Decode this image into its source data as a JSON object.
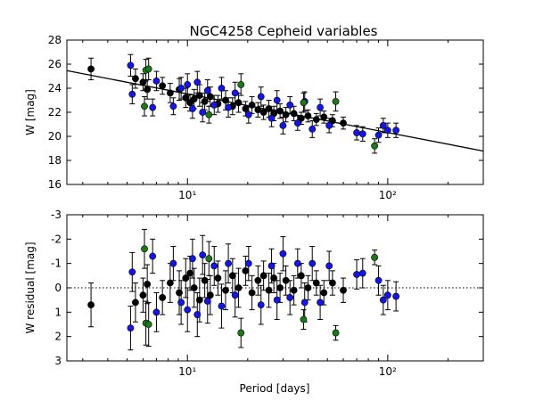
{
  "chart_data": [
    {
      "type": "scatter",
      "title": "NGC4258 Cepheid variables",
      "xlabel": "",
      "ylabel": "W [mag]",
      "xscale": "log",
      "xlim": [
        2.5,
        300
      ],
      "ylim": [
        28,
        16
      ],
      "yticks": [
        16,
        18,
        20,
        22,
        24,
        26,
        28
      ],
      "xticks": [
        {
          "value": 10,
          "label": "10¹"
        },
        {
          "value": 100,
          "label": "10²"
        }
      ],
      "grid": false,
      "fit_line": {
        "x": [
          2.5,
          300
        ],
        "y": [
          25.46,
          18.78
        ],
        "color": "#000000"
      },
      "series": [
        {
          "color": "#000000",
          "points": [
            {
              "x": 3.3,
              "y": 25.6,
              "err": 0.9
            },
            {
              "x": 5.5,
              "y": 24.8,
              "err": 0.8
            },
            {
              "x": 6.0,
              "y": 24.5,
              "err": 0.7
            },
            {
              "x": 6.3,
              "y": 23.9,
              "err": 0.8
            },
            {
              "x": 7.5,
              "y": 24.2,
              "err": 0.7
            },
            {
              "x": 8.2,
              "y": 23.6,
              "err": 0.8
            },
            {
              "x": 9.1,
              "y": 23.9,
              "err": 0.9
            },
            {
              "x": 9.8,
              "y": 23.2,
              "err": 0.8
            },
            {
              "x": 10.3,
              "y": 22.8,
              "err": 0.7
            },
            {
              "x": 10.8,
              "y": 23.1,
              "err": 0.8
            },
            {
              "x": 11.5,
              "y": 23.4,
              "err": 0.9
            },
            {
              "x": 12.2,
              "y": 22.9,
              "err": 0.7
            },
            {
              "x": 13.0,
              "y": 23.3,
              "err": 0.8
            },
            {
              "x": 14.2,
              "y": 22.7,
              "err": 0.7
            },
            {
              "x": 15.5,
              "y": 23.0,
              "err": 0.8
            },
            {
              "x": 16.8,
              "y": 22.5,
              "err": 0.7
            },
            {
              "x": 18.0,
              "y": 22.8,
              "err": 0.8
            },
            {
              "x": 19.5,
              "y": 22.3,
              "err": 0.6
            },
            {
              "x": 21.0,
              "y": 22.6,
              "err": 0.7
            },
            {
              "x": 22.5,
              "y": 22.2,
              "err": 0.6
            },
            {
              "x": 24.0,
              "y": 22.0,
              "err": 0.6
            },
            {
              "x": 25.5,
              "y": 22.3,
              "err": 0.7
            },
            {
              "x": 27.0,
              "y": 21.9,
              "err": 0.6
            },
            {
              "x": 29.0,
              "y": 22.1,
              "err": 0.6
            },
            {
              "x": 31.0,
              "y": 21.8,
              "err": 0.6
            },
            {
              "x": 34.0,
              "y": 21.9,
              "err": 0.6
            },
            {
              "x": 37.0,
              "y": 21.5,
              "err": 0.5
            },
            {
              "x": 40.0,
              "y": 21.7,
              "err": 0.5
            },
            {
              "x": 44.0,
              "y": 21.4,
              "err": 0.5
            },
            {
              "x": 48.0,
              "y": 21.6,
              "err": 0.5
            },
            {
              "x": 53.0,
              "y": 21.3,
              "err": 0.5
            },
            {
              "x": 60.0,
              "y": 21.1,
              "err": 0.5
            }
          ]
        },
        {
          "color": "#1515e6",
          "points": [
            {
              "x": 5.2,
              "y": 25.9,
              "err": 0.9
            },
            {
              "x": 5.3,
              "y": 23.5,
              "err": 0.8
            },
            {
              "x": 6.7,
              "y": 22.4,
              "err": 0.7
            },
            {
              "x": 7.0,
              "y": 24.6,
              "err": 0.8
            },
            {
              "x": 8.5,
              "y": 22.5,
              "err": 0.7
            },
            {
              "x": 9.3,
              "y": 24.0,
              "err": 0.9
            },
            {
              "x": 10.0,
              "y": 24.3,
              "err": 0.9
            },
            {
              "x": 10.6,
              "y": 22.3,
              "err": 0.8
            },
            {
              "x": 11.2,
              "y": 24.5,
              "err": 0.9
            },
            {
              "x": 11.9,
              "y": 22.0,
              "err": 0.8
            },
            {
              "x": 12.6,
              "y": 23.8,
              "err": 0.9
            },
            {
              "x": 13.6,
              "y": 22.6,
              "err": 0.8
            },
            {
              "x": 14.8,
              "y": 24.0,
              "err": 0.9
            },
            {
              "x": 16.0,
              "y": 22.4,
              "err": 0.8
            },
            {
              "x": 17.3,
              "y": 23.6,
              "err": 0.9
            },
            {
              "x": 20.2,
              "y": 21.8,
              "err": 0.7
            },
            {
              "x": 23.3,
              "y": 23.3,
              "err": 0.8
            },
            {
              "x": 26.3,
              "y": 21.5,
              "err": 0.7
            },
            {
              "x": 28.0,
              "y": 23.0,
              "err": 0.8
            },
            {
              "x": 30.0,
              "y": 20.9,
              "err": 0.7
            },
            {
              "x": 32.5,
              "y": 22.6,
              "err": 0.7
            },
            {
              "x": 35.5,
              "y": 21.1,
              "err": 0.6
            },
            {
              "x": 38.5,
              "y": 22.9,
              "err": 0.8
            },
            {
              "x": 42.0,
              "y": 20.6,
              "err": 0.7
            },
            {
              "x": 46.0,
              "y": 22.4,
              "err": 0.7
            },
            {
              "x": 51.0,
              "y": 20.9,
              "err": 0.6
            },
            {
              "x": 70.0,
              "y": 20.3,
              "err": 0.6
            },
            {
              "x": 75.0,
              "y": 20.2,
              "err": 0.6
            },
            {
              "x": 90.0,
              "y": 20.1,
              "err": 0.6
            },
            {
              "x": 95.0,
              "y": 20.9,
              "err": 0.6
            },
            {
              "x": 100.0,
              "y": 20.5,
              "err": 0.6
            },
            {
              "x": 110.0,
              "y": 20.5,
              "err": 0.6
            }
          ]
        },
        {
          "color": "#1a7a1a",
          "points": [
            {
              "x": 6.1,
              "y": 22.5,
              "err": 0.8
            },
            {
              "x": 6.2,
              "y": 25.5,
              "err": 0.9
            },
            {
              "x": 6.4,
              "y": 25.6,
              "err": 0.9
            },
            {
              "x": 12.8,
              "y": 21.8,
              "err": 0.7
            },
            {
              "x": 18.5,
              "y": 24.3,
              "err": 0.9
            },
            {
              "x": 38.0,
              "y": 22.8,
              "err": 0.8
            },
            {
              "x": 55.0,
              "y": 22.9,
              "err": 0.8
            },
            {
              "x": 86.0,
              "y": 19.2,
              "err": 0.6
            }
          ]
        }
      ]
    },
    {
      "type": "scatter",
      "title": "",
      "xlabel": "Period [days]",
      "ylabel": "W residual [mag]",
      "xscale": "log",
      "xlim": [
        2.5,
        300
      ],
      "ylim": [
        -3,
        3
      ],
      "yticks": [
        3,
        2,
        1,
        0,
        -1,
        -2,
        -3
      ],
      "xticks": [
        {
          "value": 10,
          "label": "10¹"
        },
        {
          "value": 100,
          "label": "10²"
        }
      ],
      "grid": false,
      "zero_line": {
        "y": 0,
        "style": "dotted"
      },
      "series": [
        {
          "color": "#000000",
          "points": [
            {
              "x": 3.3,
              "y": 0.7,
              "err": 0.9
            },
            {
              "x": 5.5,
              "y": 0.6,
              "err": 0.8
            },
            {
              "x": 6.0,
              "y": 0.3,
              "err": 0.7
            },
            {
              "x": 6.3,
              "y": -0.15,
              "err": 0.8
            },
            {
              "x": 7.5,
              "y": 0.4,
              "err": 0.7
            },
            {
              "x": 8.2,
              "y": -0.2,
              "err": 0.8
            },
            {
              "x": 9.1,
              "y": 0.2,
              "err": 0.9
            },
            {
              "x": 9.8,
              "y": -0.4,
              "err": 0.8
            },
            {
              "x": 10.3,
              "y": -0.6,
              "err": 0.7
            },
            {
              "x": 10.8,
              "y": 0.0,
              "err": 0.8
            },
            {
              "x": 11.5,
              "y": 0.5,
              "err": 0.9
            },
            {
              "x": 12.2,
              "y": -0.3,
              "err": 0.7
            },
            {
              "x": 13.0,
              "y": 0.3,
              "err": 0.8
            },
            {
              "x": 14.2,
              "y": -0.4,
              "err": 0.7
            },
            {
              "x": 15.5,
              "y": 0.1,
              "err": 0.8
            },
            {
              "x": 16.8,
              "y": -0.5,
              "err": 0.7
            },
            {
              "x": 18.0,
              "y": 0.0,
              "err": 0.8
            },
            {
              "x": 19.5,
              "y": -0.7,
              "err": 0.6
            },
            {
              "x": 21.0,
              "y": 0.2,
              "err": 0.7
            },
            {
              "x": 22.5,
              "y": -0.3,
              "err": 0.6
            },
            {
              "x": 24.0,
              "y": -0.5,
              "err": 0.6
            },
            {
              "x": 25.5,
              "y": 0.1,
              "err": 0.7
            },
            {
              "x": 27.0,
              "y": -0.4,
              "err": 0.6
            },
            {
              "x": 29.0,
              "y": 0.0,
              "err": 0.6
            },
            {
              "x": 31.0,
              "y": -0.3,
              "err": 0.6
            },
            {
              "x": 34.0,
              "y": 0.1,
              "err": 0.6
            },
            {
              "x": 37.0,
              "y": -0.5,
              "err": 0.5
            },
            {
              "x": 40.0,
              "y": 0.0,
              "err": 0.5
            },
            {
              "x": 44.0,
              "y": -0.2,
              "err": 0.5
            },
            {
              "x": 48.0,
              "y": 0.2,
              "err": 0.5
            },
            {
              "x": 53.0,
              "y": -0.2,
              "err": 0.5
            },
            {
              "x": 60.0,
              "y": 0.1,
              "err": 0.5
            }
          ]
        },
        {
          "color": "#1515e6",
          "points": [
            {
              "x": 5.2,
              "y": 1.65,
              "err": 0.9
            },
            {
              "x": 5.3,
              "y": -0.65,
              "err": 0.8
            },
            {
              "x": 6.7,
              "y": -1.3,
              "err": 0.7
            },
            {
              "x": 7.0,
              "y": 1.0,
              "err": 0.8
            },
            {
              "x": 8.5,
              "y": -1.0,
              "err": 0.7
            },
            {
              "x": 9.3,
              "y": 0.6,
              "err": 0.9
            },
            {
              "x": 10.0,
              "y": 0.9,
              "err": 0.9
            },
            {
              "x": 10.6,
              "y": -1.2,
              "err": 0.8
            },
            {
              "x": 11.2,
              "y": 1.1,
              "err": 0.9
            },
            {
              "x": 11.9,
              "y": -1.35,
              "err": 0.8
            },
            {
              "x": 12.6,
              "y": 0.55,
              "err": 0.9
            },
            {
              "x": 13.6,
              "y": -0.9,
              "err": 0.8
            },
            {
              "x": 14.8,
              "y": 0.75,
              "err": 0.9
            },
            {
              "x": 16.0,
              "y": -1.0,
              "err": 0.8
            },
            {
              "x": 17.3,
              "y": 0.3,
              "err": 0.9
            },
            {
              "x": 20.2,
              "y": -1.0,
              "err": 0.7
            },
            {
              "x": 23.3,
              "y": 0.7,
              "err": 0.8
            },
            {
              "x": 26.3,
              "y": -0.9,
              "err": 0.7
            },
            {
              "x": 28.0,
              "y": 0.5,
              "err": 0.8
            },
            {
              "x": 30.0,
              "y": -1.4,
              "err": 0.7
            },
            {
              "x": 32.5,
              "y": 0.4,
              "err": 0.7
            },
            {
              "x": 35.5,
              "y": -1.0,
              "err": 0.6
            },
            {
              "x": 38.5,
              "y": 0.6,
              "err": 0.8
            },
            {
              "x": 42.0,
              "y": -1.0,
              "err": 0.7
            },
            {
              "x": 46.0,
              "y": 0.6,
              "err": 0.7
            },
            {
              "x": 51.0,
              "y": -0.9,
              "err": 0.6
            },
            {
              "x": 70.0,
              "y": -0.55,
              "err": 0.6
            },
            {
              "x": 75.0,
              "y": -0.6,
              "err": 0.6
            },
            {
              "x": 90.0,
              "y": -0.3,
              "err": 0.6
            },
            {
              "x": 95.0,
              "y": 0.5,
              "err": 0.6
            },
            {
              "x": 100.0,
              "y": 0.3,
              "err": 0.6
            },
            {
              "x": 110.0,
              "y": 0.35,
              "err": 0.6
            }
          ]
        },
        {
          "color": "#1a7a1a",
          "points": [
            {
              "x": 6.1,
              "y": -1.6,
              "err": 0.8
            },
            {
              "x": 6.2,
              "y": 1.45,
              "err": 0.9
            },
            {
              "x": 6.4,
              "y": 1.5,
              "err": 0.9
            },
            {
              "x": 12.8,
              "y": -1.2,
              "err": 0.7
            },
            {
              "x": 18.5,
              "y": 1.85,
              "err": 0.6
            },
            {
              "x": 38.0,
              "y": 1.3,
              "err": 0.4
            },
            {
              "x": 55.0,
              "y": 1.85,
              "err": 0.3
            },
            {
              "x": 86.0,
              "y": -1.25,
              "err": 0.3
            }
          ]
        }
      ]
    }
  ]
}
